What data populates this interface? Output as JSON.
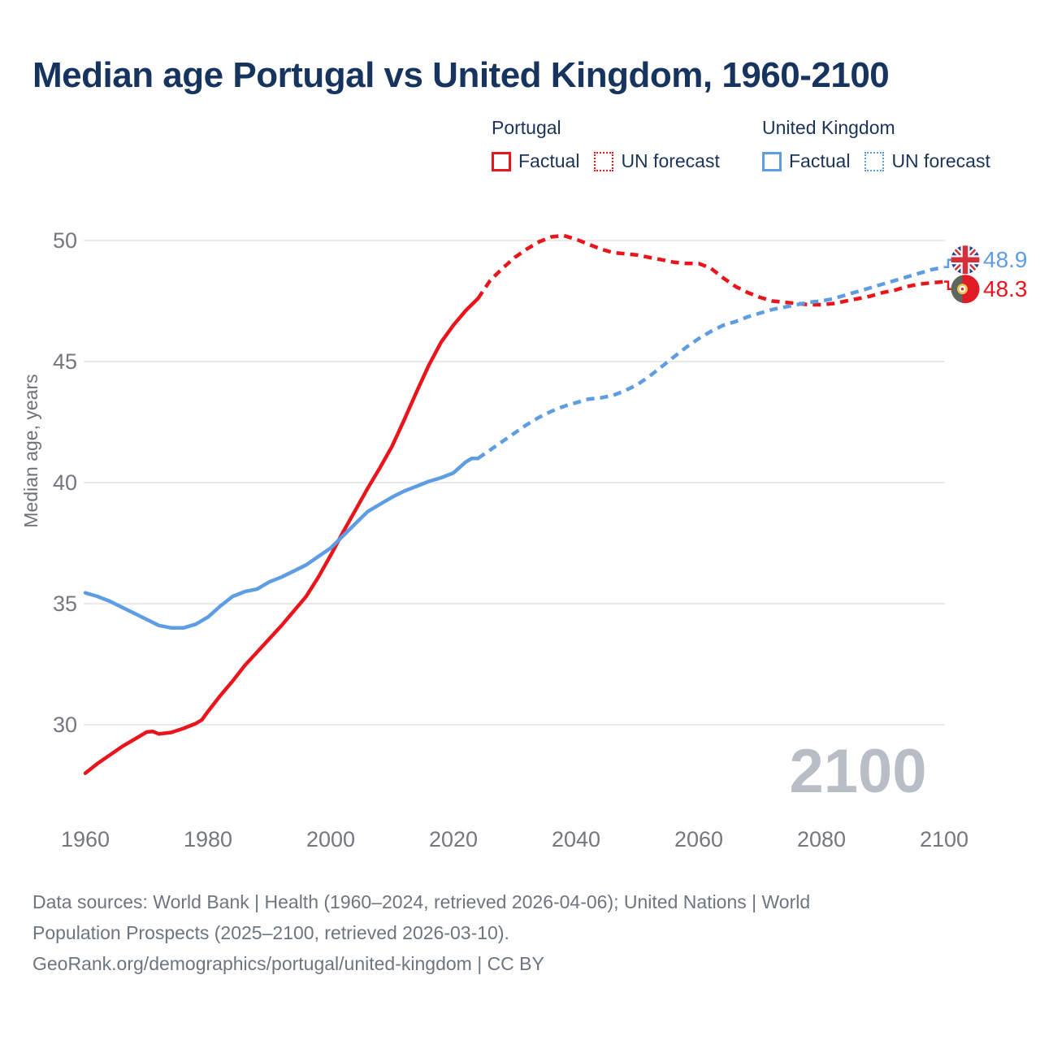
{
  "title": "Median age Portugal vs United Kingdom, 1960-2100",
  "legend": {
    "portugal": {
      "title": "Portugal",
      "factual": "Factual",
      "forecast": "UN forecast"
    },
    "uk": {
      "title": "United Kingdom",
      "factual": "Factual",
      "forecast": "UN forecast"
    }
  },
  "colors": {
    "portugal": "#e8151d",
    "uk": "#5f9de2",
    "title_navy": "#17345f",
    "tick_gray": "#74787d",
    "axis_title_gray": "#6e7278",
    "footer_gray": "#6d7580",
    "watermark_gray": "#b9bec6",
    "grid": "#e0e3e7"
  },
  "footer": {
    "lines": [
      "Data sources: World Bank | Health (1960–2024, retrieved 2026-04-06); United Nations | World",
      "Population Prospects (2025–2100, retrieved 2026-03-10).",
      "GeoRank.org/demographics/portugal/united-kingdom | CC BY"
    ]
  },
  "chart_data": {
    "type": "line",
    "title": "Median age Portugal vs United Kingdom, 1960-2100",
    "xlabel": "",
    "ylabel": "Median age, years",
    "xlim": [
      1960,
      2100
    ],
    "ylim": [
      26.5,
      51
    ],
    "grid": true,
    "legend_position": "top-right",
    "watermark": "2100",
    "yticks": [
      30,
      35,
      40,
      45,
      50
    ],
    "xticks": [
      1960,
      1980,
      2000,
      2020,
      2040,
      2060,
      2080,
      2100
    ],
    "series": [
      {
        "name": "Portugal Factual",
        "country": "portugal",
        "style": "solid",
        "points": [
          [
            1960,
            28.0
          ],
          [
            1962,
            28.4
          ],
          [
            1964,
            28.75
          ],
          [
            1966,
            29.1
          ],
          [
            1968,
            29.4
          ],
          [
            1970,
            29.7
          ],
          [
            1971,
            29.72
          ],
          [
            1972,
            29.62
          ],
          [
            1974,
            29.68
          ],
          [
            1976,
            29.85
          ],
          [
            1978,
            30.05
          ],
          [
            1979,
            30.2
          ],
          [
            1980,
            30.55
          ],
          [
            1982,
            31.2
          ],
          [
            1984,
            31.8
          ],
          [
            1986,
            32.45
          ],
          [
            1988,
            33.0
          ],
          [
            1990,
            33.55
          ],
          [
            1992,
            34.1
          ],
          [
            1994,
            34.7
          ],
          [
            1996,
            35.3
          ],
          [
            1998,
            36.1
          ],
          [
            2000,
            37.0
          ],
          [
            2002,
            37.95
          ],
          [
            2004,
            38.85
          ],
          [
            2006,
            39.75
          ],
          [
            2008,
            40.6
          ],
          [
            2010,
            41.5
          ],
          [
            2012,
            42.6
          ],
          [
            2014,
            43.75
          ],
          [
            2016,
            44.85
          ],
          [
            2018,
            45.8
          ],
          [
            2020,
            46.5
          ],
          [
            2022,
            47.1
          ],
          [
            2024,
            47.6
          ]
        ]
      },
      {
        "name": "Portugal UN forecast",
        "country": "portugal",
        "style": "dashed",
        "points": [
          [
            2024,
            47.6
          ],
          [
            2026,
            48.35
          ],
          [
            2028,
            48.85
          ],
          [
            2030,
            49.3
          ],
          [
            2032,
            49.65
          ],
          [
            2034,
            49.95
          ],
          [
            2036,
            50.15
          ],
          [
            2038,
            50.2
          ],
          [
            2040,
            50.05
          ],
          [
            2042,
            49.85
          ],
          [
            2044,
            49.65
          ],
          [
            2046,
            49.5
          ],
          [
            2048,
            49.45
          ],
          [
            2050,
            49.4
          ],
          [
            2052,
            49.3
          ],
          [
            2054,
            49.2
          ],
          [
            2056,
            49.1
          ],
          [
            2058,
            49.05
          ],
          [
            2060,
            49.05
          ],
          [
            2062,
            48.85
          ],
          [
            2064,
            48.45
          ],
          [
            2066,
            48.1
          ],
          [
            2068,
            47.85
          ],
          [
            2070,
            47.65
          ],
          [
            2072,
            47.5
          ],
          [
            2074,
            47.45
          ],
          [
            2076,
            47.4
          ],
          [
            2078,
            47.35
          ],
          [
            2080,
            47.35
          ],
          [
            2082,
            47.4
          ],
          [
            2084,
            47.5
          ],
          [
            2086,
            47.6
          ],
          [
            2088,
            47.7
          ],
          [
            2090,
            47.85
          ],
          [
            2092,
            47.95
          ],
          [
            2094,
            48.1
          ],
          [
            2096,
            48.2
          ],
          [
            2098,
            48.25
          ],
          [
            2100,
            48.3
          ]
        ]
      },
      {
        "name": "United Kingdom Factual",
        "country": "uk",
        "style": "solid",
        "points": [
          [
            1960,
            35.45
          ],
          [
            1962,
            35.3
          ],
          [
            1964,
            35.1
          ],
          [
            1966,
            34.85
          ],
          [
            1968,
            34.6
          ],
          [
            1970,
            34.35
          ],
          [
            1972,
            34.1
          ],
          [
            1974,
            34.0
          ],
          [
            1976,
            34.0
          ],
          [
            1978,
            34.15
          ],
          [
            1980,
            34.45
          ],
          [
            1982,
            34.9
          ],
          [
            1984,
            35.3
          ],
          [
            1986,
            35.5
          ],
          [
            1988,
            35.6
          ],
          [
            1990,
            35.9
          ],
          [
            1992,
            36.1
          ],
          [
            1994,
            36.35
          ],
          [
            1996,
            36.6
          ],
          [
            1998,
            36.95
          ],
          [
            2000,
            37.3
          ],
          [
            2002,
            37.8
          ],
          [
            2004,
            38.3
          ],
          [
            2006,
            38.8
          ],
          [
            2008,
            39.1
          ],
          [
            2010,
            39.4
          ],
          [
            2012,
            39.65
          ],
          [
            2014,
            39.85
          ],
          [
            2016,
            40.05
          ],
          [
            2018,
            40.2
          ],
          [
            2020,
            40.4
          ],
          [
            2022,
            40.85
          ],
          [
            2023,
            41.0
          ],
          [
            2024,
            41.0
          ]
        ]
      },
      {
        "name": "United Kingdom UN forecast",
        "country": "uk",
        "style": "dashed",
        "points": [
          [
            2024,
            41.0
          ],
          [
            2026,
            41.35
          ],
          [
            2028,
            41.7
          ],
          [
            2030,
            42.05
          ],
          [
            2032,
            42.4
          ],
          [
            2034,
            42.7
          ],
          [
            2036,
            42.95
          ],
          [
            2038,
            43.15
          ],
          [
            2040,
            43.3
          ],
          [
            2042,
            43.45
          ],
          [
            2044,
            43.5
          ],
          [
            2046,
            43.6
          ],
          [
            2048,
            43.8
          ],
          [
            2050,
            44.05
          ],
          [
            2052,
            44.4
          ],
          [
            2054,
            44.8
          ],
          [
            2056,
            45.2
          ],
          [
            2058,
            45.6
          ],
          [
            2060,
            45.95
          ],
          [
            2062,
            46.25
          ],
          [
            2064,
            46.5
          ],
          [
            2066,
            46.65
          ],
          [
            2068,
            46.85
          ],
          [
            2070,
            47.0
          ],
          [
            2072,
            47.15
          ],
          [
            2074,
            47.25
          ],
          [
            2076,
            47.35
          ],
          [
            2078,
            47.45
          ],
          [
            2080,
            47.5
          ],
          [
            2082,
            47.6
          ],
          [
            2084,
            47.75
          ],
          [
            2086,
            47.9
          ],
          [
            2088,
            48.05
          ],
          [
            2090,
            48.2
          ],
          [
            2092,
            48.35
          ],
          [
            2094,
            48.5
          ],
          [
            2096,
            48.65
          ],
          [
            2098,
            48.8
          ],
          [
            2100,
            48.9
          ]
        ]
      }
    ],
    "end_labels": [
      {
        "country": "uk",
        "flag": "uk-flag-icon",
        "value": "48.9",
        "series_index": 3
      },
      {
        "country": "portugal",
        "flag": "portugal-flag-icon",
        "value": "48.3",
        "series_index": 1
      }
    ]
  }
}
